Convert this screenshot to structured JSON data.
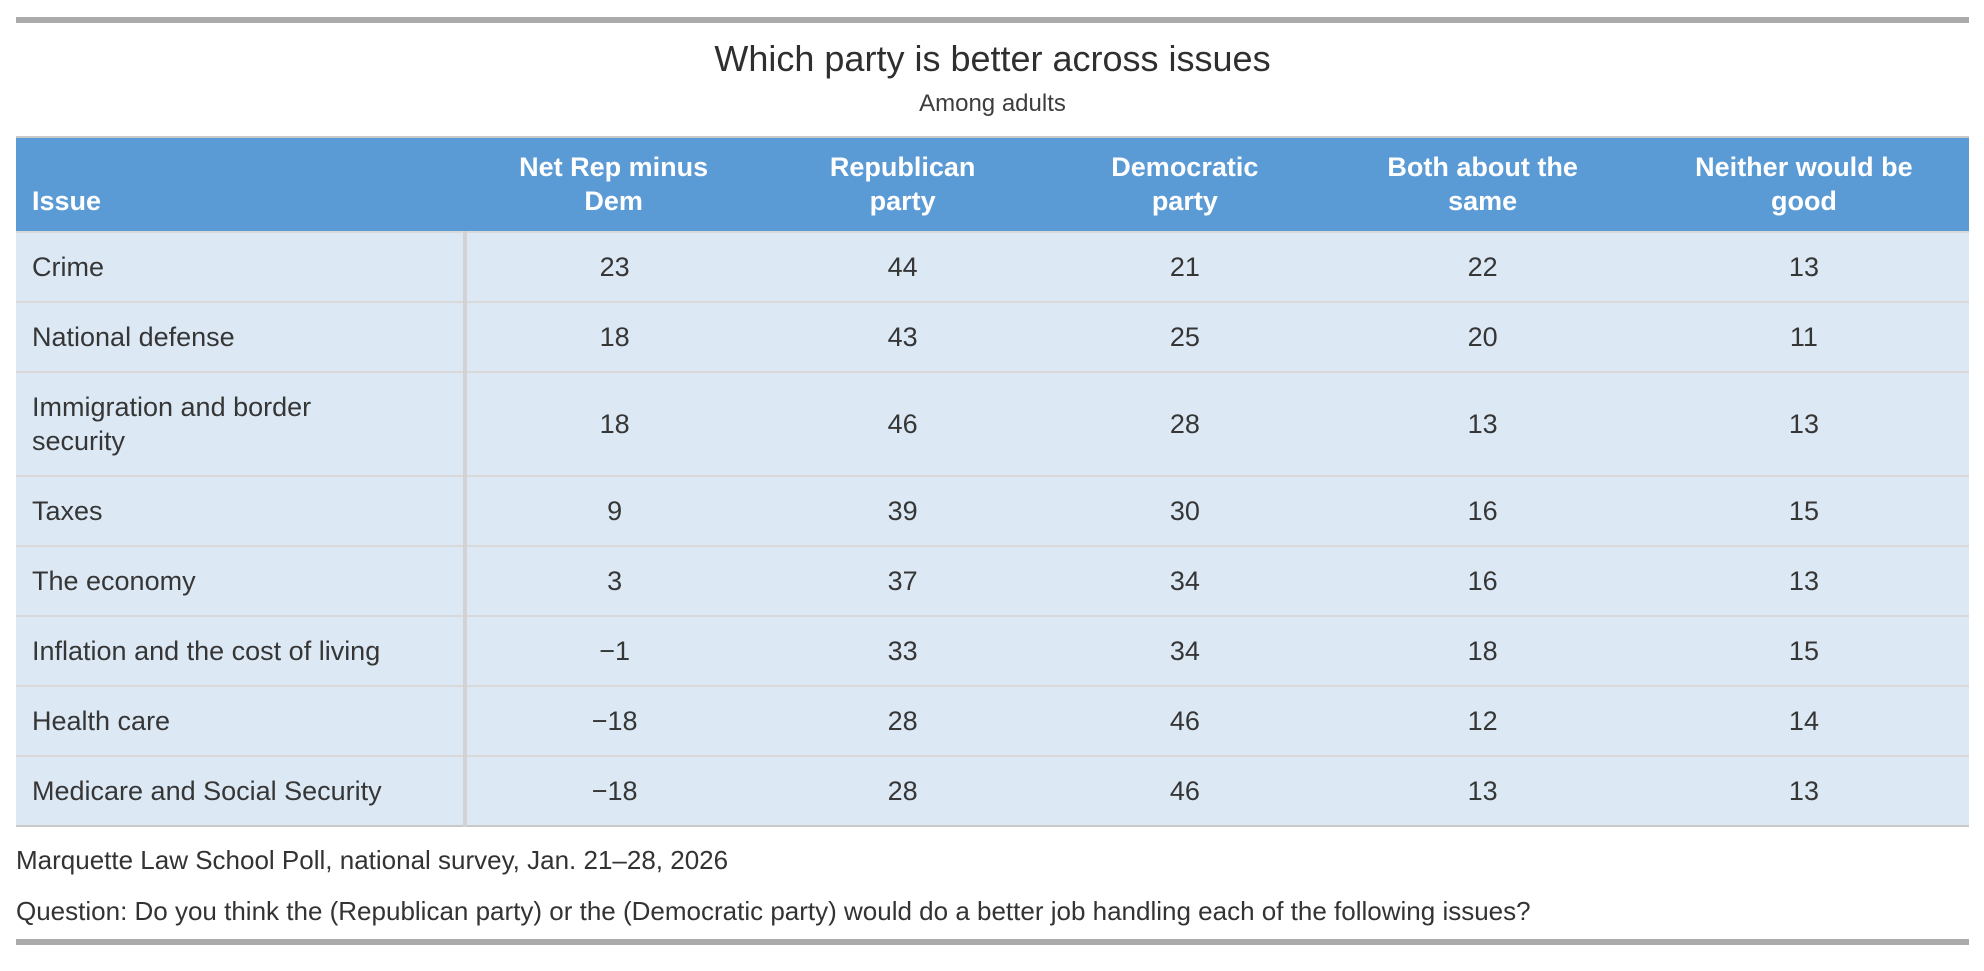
{
  "chart_data": {
    "type": "table",
    "title": "Which party is better across issues",
    "subtitle": "Among adults",
    "columns": [
      "Issue",
      "Net Rep minus\nDem",
      "Republican\nparty",
      "Democratic\nparty",
      "Both about the\nsame",
      "Neither would be\ngood"
    ],
    "rows": [
      {
        "issue": "Crime",
        "values": [
          "23",
          "44",
          "21",
          "22",
          "13"
        ]
      },
      {
        "issue": "National defense",
        "values": [
          "18",
          "43",
          "25",
          "20",
          "11"
        ]
      },
      {
        "issue": "Immigration and border\nsecurity",
        "values": [
          "18",
          "46",
          "28",
          "13",
          "13"
        ]
      },
      {
        "issue": "Taxes",
        "values": [
          "9",
          "39",
          "30",
          "16",
          "15"
        ]
      },
      {
        "issue": "The economy",
        "values": [
          "3",
          "37",
          "34",
          "16",
          "13"
        ]
      },
      {
        "issue": "Inflation and the cost of living",
        "values": [
          "−1",
          "33",
          "34",
          "18",
          "15"
        ]
      },
      {
        "issue": "Health care",
        "values": [
          "−18",
          "28",
          "46",
          "12",
          "14"
        ]
      },
      {
        "issue": "Medicare and Social Security",
        "values": [
          "−18",
          "28",
          "46",
          "13",
          "13"
        ]
      }
    ],
    "source": "Marquette Law School Poll, national survey, Jan. 21–28, 2026",
    "question": "Question: Do you think the (Republican party) or the (Democratic party) would do a better job handling each of the following issues?",
    "layout_hints": {
      "legend": "none",
      "grid": "row-separators"
    }
  },
  "colors": {
    "header_bg": "#5b9bd5",
    "header_text": "#ffffff",
    "row_bg": "#dce9f5",
    "row_separator": "#d9d9d9",
    "column_divider": "#d2d2d2",
    "accent_bar": "#ababab",
    "body_text": "#363636"
  }
}
